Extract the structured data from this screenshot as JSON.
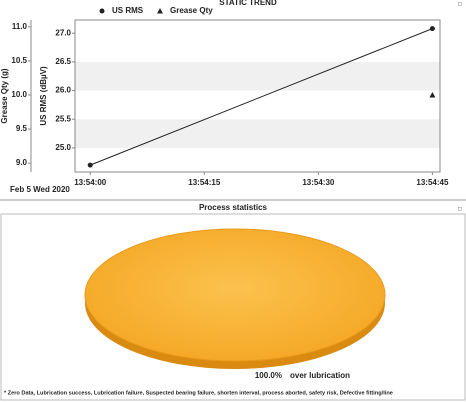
{
  "chart_data": [
    {
      "type": "line",
      "title": "STATIC TREND",
      "ylabel": "Grease Qty (g)",
      "y2label": "US RMS (dBµV)",
      "xlabel": "Feb 5 Wed 2020",
      "xlim": [
        "13:53:58",
        "13:54:46"
      ],
      "xticks": [
        "13:54:00",
        "13:54:15",
        "13:54:30",
        "13:54:45"
      ],
      "ylim": [
        8.87,
        11.1
      ],
      "yticks": [
        {
          "value": 9,
          "label": "9.0"
        },
        9.5,
        {
          "value": 10,
          "label": "10.0"
        },
        10.5,
        {
          "value": 11,
          "label": "11.0"
        }
      ],
      "y2lim": [
        24.58,
        27.23
      ],
      "y2ticks": [
        {
          "value": 25,
          "label": "25.0"
        },
        25.5,
        {
          "value": 26,
          "label": "26.0"
        },
        26.5,
        {
          "value": 27,
          "label": "27.0"
        }
      ],
      "series": [
        {
          "name": "US RMS",
          "color": "#222222",
          "marker": "circle",
          "axis": "y2",
          "x": [
            "13:54:00",
            "13:54:45"
          ],
          "values": [
            24.7,
            27.08
          ]
        },
        {
          "name": "Grease Qty",
          "color": "#222222",
          "marker": "triangle",
          "x": [
            "13:54:45"
          ],
          "values": [
            10.0
          ]
        }
      ]
    },
    {
      "type": "pie",
      "title": "Process statistics",
      "categories": [
        "over lubrication"
      ],
      "values": [
        100
      ],
      "value_labels": [
        "100.0%"
      ],
      "colors": [
        "#f5a623"
      ],
      "footnote": "* Zero Data,   Lubrication success,   Lubrication failure,   Suspected bearing failure,   shorten interval,   process aborted,   safety risk,   Defective fitting/line"
    }
  ]
}
